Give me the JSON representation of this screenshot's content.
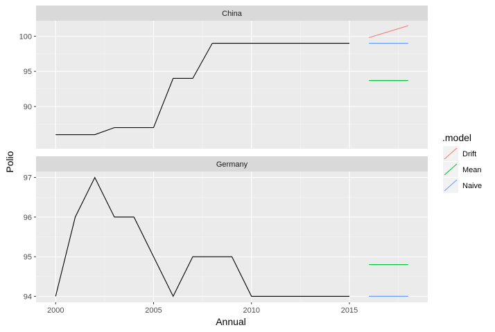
{
  "chart_data": {
    "type": "line",
    "xlabel": "Annual",
    "ylabel": "Polio",
    "x_ticks": [
      2000,
      2005,
      2010,
      2015
    ],
    "xlim": [
      1999.0,
      2019.0
    ],
    "grid": true,
    "legend_position": "right",
    "legend": {
      "title": ".model",
      "entries": [
        {
          "name": "Drift",
          "color": "#F8766D"
        },
        {
          "name": "Mean",
          "color": "#00BA38"
        },
        {
          "name": "Naive",
          "color": "#619CFF"
        }
      ]
    },
    "panels": [
      {
        "strip": "China",
        "ylim": [
          84.0,
          102.2
        ],
        "y_ticks": [
          90,
          95,
          100
        ],
        "history": {
          "color": "#000000",
          "x": [
            2000,
            2001,
            2002,
            2003,
            2004,
            2005,
            2006,
            2007,
            2008,
            2009,
            2010,
            2011,
            2012,
            2013,
            2014,
            2015
          ],
          "y": [
            86,
            86,
            86,
            87,
            87,
            87,
            94,
            94,
            99,
            99,
            99,
            99,
            99,
            99,
            99,
            99
          ]
        },
        "forecasts": [
          {
            "name": "Drift",
            "x": [
              2016,
              2018
            ],
            "y": [
              99.8,
              101.5
            ]
          },
          {
            "name": "Mean",
            "x": [
              2016,
              2018
            ],
            "y": [
              93.7,
              93.7
            ]
          },
          {
            "name": "Naive",
            "x": [
              2016,
              2018
            ],
            "y": [
              99.0,
              99.0
            ]
          }
        ]
      },
      {
        "strip": "Germany",
        "ylim": [
          93.85,
          97.15
        ],
        "y_ticks": [
          94,
          95,
          96,
          97
        ],
        "history": {
          "color": "#000000",
          "x": [
            2000,
            2001,
            2002,
            2003,
            2004,
            2005,
            2006,
            2007,
            2008,
            2009,
            2010,
            2011,
            2012,
            2013,
            2014,
            2015
          ],
          "y": [
            94,
            96,
            97,
            96,
            96,
            95,
            94,
            95,
            95,
            95,
            94,
            94,
            94,
            94,
            94,
            94
          ]
        },
        "forecasts": [
          {
            "name": "Drift",
            "x": [
              2016,
              2018
            ],
            "y": [
              94.0,
              94.0
            ]
          },
          {
            "name": "Mean",
            "x": [
              2016,
              2018
            ],
            "y": [
              94.8,
              94.8
            ]
          },
          {
            "name": "Naive",
            "x": [
              2016,
              2018
            ],
            "y": [
              94.0,
              94.0
            ]
          }
        ]
      }
    ]
  }
}
